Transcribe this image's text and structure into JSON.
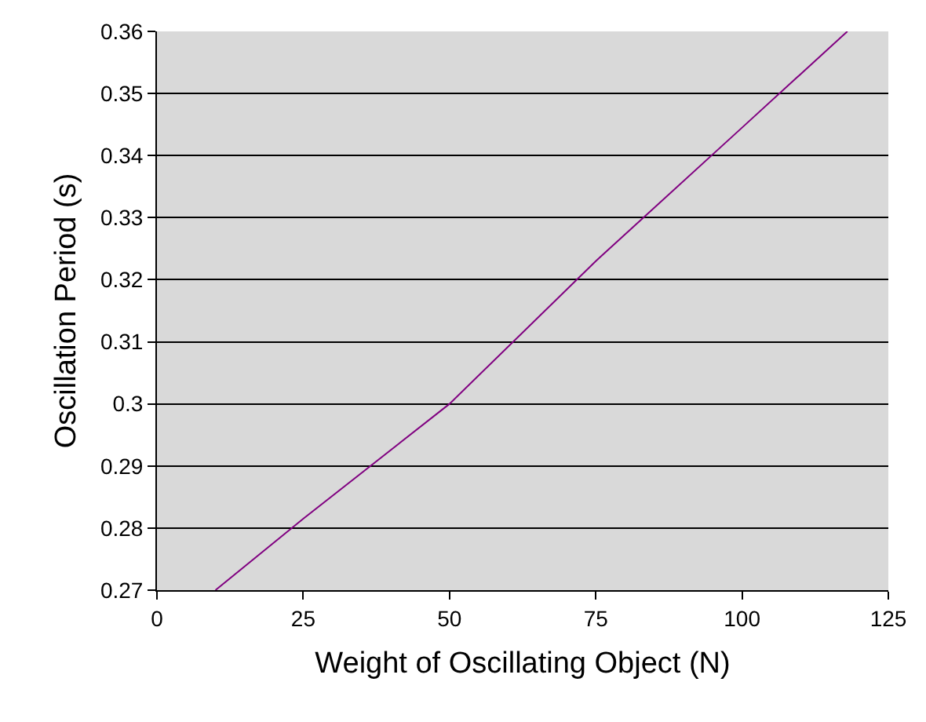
{
  "chart_data": {
    "type": "line",
    "xlabel": "Weight of Oscillating Object (N)",
    "ylabel": "Oscillation Period (s)",
    "x": [
      10,
      25,
      50,
      75,
      100,
      118
    ],
    "series": [
      {
        "color": "#800080",
        "values": [
          0.27,
          0.2815,
          0.3,
          0.323,
          0.3445,
          0.36
        ]
      }
    ],
    "xlim": [
      0,
      125
    ],
    "xticks": [
      0,
      25,
      50,
      75,
      100,
      125
    ],
    "ylim": [
      0.27,
      0.36
    ],
    "yticks": [
      0.27,
      0.28,
      0.29,
      {
        "value": 0.3,
        "label": "0.3"
      },
      0.31,
      0.32,
      0.33,
      0.34,
      0.35,
      0.36
    ],
    "grid": "y",
    "marker": "none",
    "line_style": "solid"
  }
}
